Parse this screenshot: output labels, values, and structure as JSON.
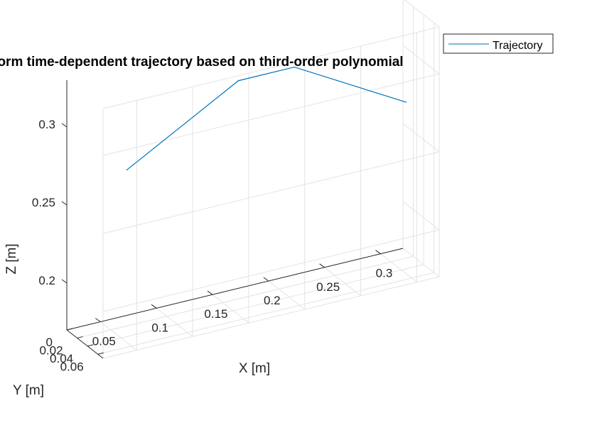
{
  "chart_data": {
    "type": "line",
    "projection": "3d",
    "title": "Closed-form time-dependent trajectory based on third-order polynomial",
    "xlabel": "X [m]",
    "ylabel": "Y [m]",
    "zlabel": "Z [m]",
    "xlim": [
      0.02,
      0.32
    ],
    "ylim": [
      0,
      0.07
    ],
    "zlim": [
      0.17,
      0.33
    ],
    "xticks": [
      0.05,
      0.1,
      0.15,
      0.2,
      0.25,
      0.3
    ],
    "xtick_labels": [
      "0.05",
      "0.1",
      "0.15",
      "0.2",
      "0.25",
      "0.3"
    ],
    "yticks": [
      0,
      0.02,
      0.04,
      0.06
    ],
    "ytick_labels": [
      "0",
      "0.02",
      "0.04",
      "0.06"
    ],
    "zticks": [
      0.2,
      0.25,
      0.3
    ],
    "ztick_labels": [
      "0.2",
      "0.25",
      "0.3"
    ],
    "grid": true,
    "legend_position": "top-right",
    "series": [
      {
        "name": "Trajectory",
        "color": "#0072BD",
        "x": [
          0.05,
          0.15,
          0.2,
          0.3
        ],
        "y": [
          0.05,
          0.05,
          0.05,
          0.05
        ],
        "z": [
          0.28,
          0.32,
          0.32,
          0.28
        ]
      }
    ]
  }
}
